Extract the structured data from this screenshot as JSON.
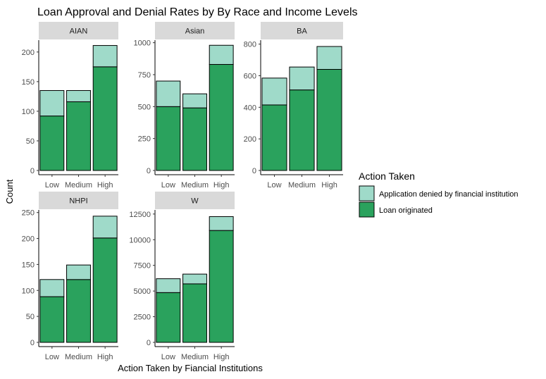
{
  "chart_data": {
    "type": "bar",
    "stacked": true,
    "title": "Loan Approval and Denial Rates by By Race and Income Levels",
    "xlabel": "Action Taken by Fiancial Institutions",
    "ylabel": "Count",
    "categories": [
      "Low",
      "Medium",
      "High"
    ],
    "legend": {
      "title": "Action Taken",
      "placement": "right",
      "entries": [
        {
          "name": "Application denied by financial institution",
          "color": "#9fdac9"
        },
        {
          "name": "Loan originated",
          "color": "#2aa25d"
        }
      ]
    },
    "grid": false,
    "panels": [
      {
        "name": "AIAN",
        "ylim": [
          0,
          220
        ],
        "yticks": [
          0,
          50,
          100,
          150,
          200
        ],
        "series": [
          {
            "name": "Loan originated",
            "values": [
              92,
              116,
              175
            ]
          },
          {
            "name": "Application denied by financial institution",
            "values": [
              43,
              19,
              36
            ]
          }
        ]
      },
      {
        "name": "Asian",
        "ylim": [
          0,
          1020
        ],
        "yticks": [
          0,
          250,
          500,
          750,
          1000
        ],
        "series": [
          {
            "name": "Loan originated",
            "values": [
              500,
              490,
              830
            ]
          },
          {
            "name": "Application denied by financial institution",
            "values": [
              200,
              110,
              150
            ]
          }
        ]
      },
      {
        "name": "BA",
        "ylim": [
          0,
          825
        ],
        "yticks": [
          0,
          200,
          400,
          600,
          800
        ],
        "series": [
          {
            "name": "Loan originated",
            "values": [
              415,
              510,
              640
            ]
          },
          {
            "name": "Application denied by financial institution",
            "values": [
              170,
              145,
              145
            ]
          }
        ]
      },
      {
        "name": "NHPI",
        "ylim": [
          0,
          255
        ],
        "yticks": [
          0,
          50,
          100,
          150,
          200,
          250
        ],
        "series": [
          {
            "name": "Loan originated",
            "values": [
              88,
              121,
              201
            ]
          },
          {
            "name": "Application denied by financial institution",
            "values": [
              33,
              28,
              42
            ]
          }
        ]
      },
      {
        "name": "W",
        "ylim": [
          0,
          12900
        ],
        "yticks": [
          0,
          2500,
          5000,
          7500,
          10000,
          12500
        ],
        "series": [
          {
            "name": "Loan originated",
            "values": [
              4850,
              5700,
              10900
            ]
          },
          {
            "name": "Application denied by financial institution",
            "values": [
              1350,
              950,
              1350
            ]
          }
        ]
      }
    ]
  }
}
